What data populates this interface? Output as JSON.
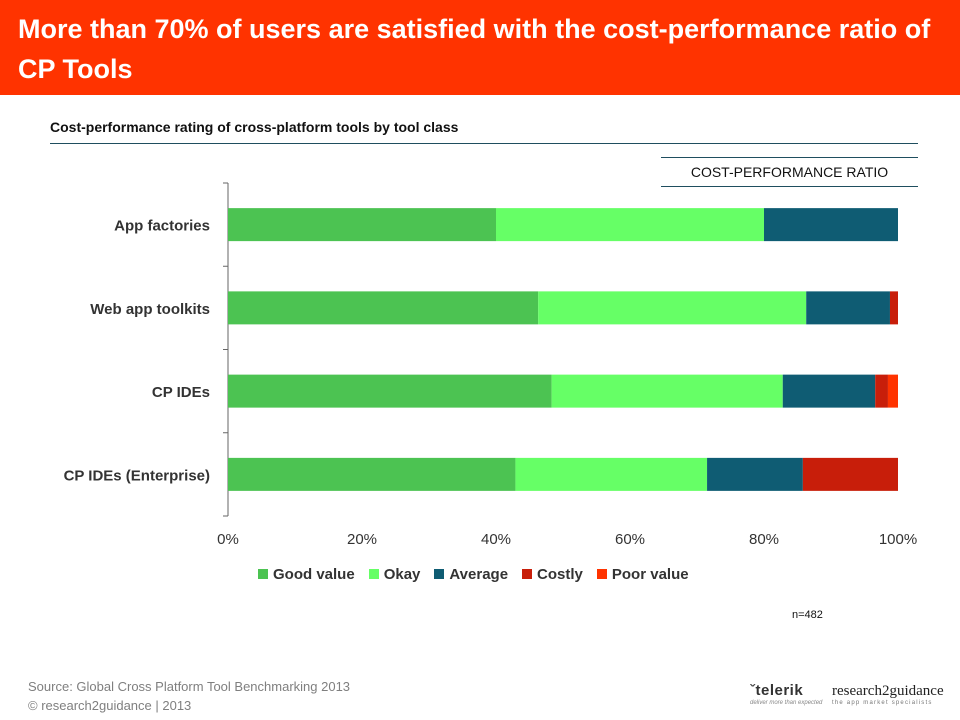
{
  "header": {
    "title": "More than 70% of users are satisfied with the cost-performance ratio of CP Tools"
  },
  "subtitle": "Cost-performance rating of cross-platform tools by tool class",
  "column_label": "COST-PERFORMANCE RATIO",
  "chart_data": {
    "type": "bar",
    "orientation": "horizontal",
    "stacked": true,
    "percent_stacked": true,
    "categories": [
      "App factories",
      "Web app toolkits",
      "CP IDEs",
      "CP IDEs (Enterprise)"
    ],
    "series": [
      {
        "name": "Good value",
        "color": "#4cc352",
        "values": [
          40,
          46.3,
          48.3,
          42.9
        ]
      },
      {
        "name": "Okay",
        "color": "#66ff66",
        "values": [
          40,
          40,
          34.5,
          28.6
        ]
      },
      {
        "name": "Average",
        "color": "#0f5c73",
        "values": [
          20,
          12.5,
          13.8,
          14.3
        ]
      },
      {
        "name": "Costly",
        "color": "#c81e0a",
        "values": [
          0,
          1.2,
          1.9,
          14.2
        ]
      },
      {
        "name": "Poor value",
        "color": "#ff3300",
        "values": [
          0,
          0,
          1.5,
          0
        ]
      }
    ],
    "xlim": [
      0,
      100
    ],
    "x_ticks": [
      "0%",
      "20%",
      "40%",
      "60%",
      "80%",
      "100%"
    ],
    "grid": false,
    "legend_position": "bottom"
  },
  "n_label": "n=482",
  "source": {
    "line1": "Source: Global Cross Platform Tool Benchmarking 2013",
    "line2": "© research2guidance  |  2013"
  },
  "logos": {
    "telerik": {
      "name": "telerik",
      "mark": "ˇ",
      "tagline": "deliver more than expected"
    },
    "r2g": {
      "name": "research2guidance",
      "tagline": "the app market specialists"
    }
  }
}
